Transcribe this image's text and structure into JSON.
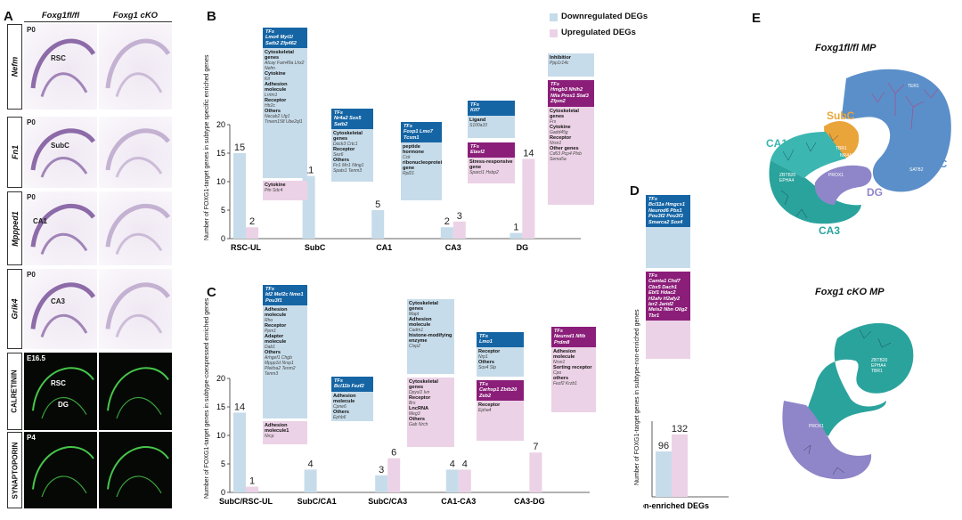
{
  "panel_a": {
    "letter": "A",
    "col_ctrl": "Foxg1fl/fl",
    "col_cko": "Foxg1 cKO",
    "rows": [
      {
        "gene": "Nefm",
        "age": "P0",
        "label": "RSC"
      },
      {
        "gene": "Fn1",
        "age": "P0",
        "label": "SubC"
      },
      {
        "gene": "Mppped1",
        "age": "P0",
        "label": "CA1"
      },
      {
        "gene": "Grik4",
        "age": "P0",
        "label": "CA3"
      },
      {
        "gene": "CALRETININ",
        "age": "E16.5",
        "label": "RSC",
        "label2": "DG"
      },
      {
        "gene": "SYNAPTOPORIN",
        "age": "P4",
        "label": ""
      }
    ]
  },
  "panel_b": {
    "letter": "B",
    "legend_down": "Downregulated DEGs",
    "legend_up": "Upregulated DEGs",
    "color_down": "#c7dcea",
    "color_up": "#ecd2e6",
    "boxes": [
      {
        "id": "rsc_down",
        "hd": "TFs",
        "hd_genes": "Lmo4 Myt1l Satb2 Zfp462",
        "body": [
          [
            "Cytoskeletal genes",
            "Atcay Fam49a Lhx2 Nefm"
          ],
          [
            "Cytokine",
            "Kit"
          ],
          [
            "Adhesion molecule",
            "Lrrtm1"
          ],
          [
            "Receptor",
            "Htr2c"
          ],
          [
            "Others",
            "Necab2 Lfg1 Tmem158 Ube2ql1"
          ]
        ]
      },
      {
        "id": "rsc_up",
        "hd": "",
        "hd_genes": "",
        "body": [
          [
            "Cytokine",
            "Ptn Sdc4"
          ]
        ]
      },
      {
        "id": "subc_down",
        "hd": "TFs",
        "hd_genes": "Nr4a2 Sox5 Satb2",
        "body": [
          [
            "Cytoskeletal genes",
            "Dock3 Crtc1"
          ],
          [
            "Receptor",
            "Sez6"
          ],
          [
            "Others",
            "Fn1 Mn1 Ntng1 Spats1 Tenm3"
          ]
        ]
      },
      {
        "id": "ca1_down",
        "hd": "TFs",
        "hd_genes": "Foxp1 Lmo7 Tcsm1",
        "body": [
          [
            "peptide hormone",
            "Cck"
          ],
          [
            "ribonucleoprotein gene",
            "Rpl21"
          ]
        ]
      },
      {
        "id": "ca3_down",
        "hd": "TFs",
        "hd_genes": "Klf7",
        "body": [
          [
            "Ligand",
            "S100a10"
          ]
        ]
      },
      {
        "id": "ca3_up",
        "hd": "TFs",
        "hd_genes": "Elavl2",
        "body": [
          [
            "Stress-responsive gene",
            "Sparcl1 Hsbp2"
          ]
        ]
      },
      {
        "id": "dg_down",
        "hd": "",
        "hd_genes": "",
        "body": [
          [
            "Inhibitior",
            "Ppp1r14c"
          ]
        ]
      },
      {
        "id": "dg_up",
        "hd": "TFs",
        "hd_genes": "Hmgb3 Nhlh2 Nfia Prox1 Stat3 Zfpm2",
        "body": [
          [
            "Cytoskeletal genes",
            "Frs"
          ],
          [
            "Cytokine",
            "Gadd45g"
          ],
          [
            "Receptor",
            "Nrsn1"
          ],
          [
            "Other genes",
            "Cd63 Pcp4 Plxb Sema5a"
          ]
        ]
      }
    ]
  },
  "panel_c": {
    "letter": "C",
    "boxes": [
      {
        "id": "sr_down",
        "hd": "TFs",
        "hd_genes": "Id2 Mef2c Nmo1 Pou3f1",
        "body": [
          [
            "Adhesion molecule",
            "Rho"
          ],
          [
            "Receptor",
            "Ppm1"
          ],
          [
            "Adapter molecule",
            "Dab1"
          ],
          [
            "Others",
            "Arhgef1 Chgb Mppp1d Nrsp1 Plekha2 Tenm2 Tenm3"
          ]
        ]
      },
      {
        "id": "sr_up",
        "hd": "",
        "hd_genes": "",
        "body": [
          [
            "Adhesion molecule1",
            "Nrcp"
          ]
        ]
      },
      {
        "id": "sca1_down",
        "hd": "TFs",
        "hd_genes": "Bcl11b Fezf2",
        "body": [
          [
            "Adhesion molecule",
            "Cpne6"
          ],
          [
            "Others",
            "Ephb6"
          ]
        ]
      },
      {
        "id": "sca3_down",
        "hd": "",
        "hd_genes": "",
        "body": [
          [
            "Cytoskeletal genes",
            "Mapt"
          ],
          [
            "Adhesion molecule",
            "Cadm1"
          ],
          [
            "histone-modifying enzyme",
            "Cisp2"
          ]
        ]
      },
      {
        "id": "sca3_up",
        "hd": "",
        "hd_genes": "",
        "body": [
          [
            "Cytoskeletal genes",
            "Dpysl1 Ivn"
          ],
          [
            "Receptor",
            "Brs"
          ],
          [
            "LncRNA",
            "Meg3"
          ],
          [
            "Others",
            "Gab Nrch"
          ]
        ]
      },
      {
        "id": "cc_down",
        "hd": "TFs",
        "hd_genes": "Lmo1",
        "body": [
          [
            "Receptor",
            "Nrp1"
          ],
          [
            "Others",
            "Sox4 Slp"
          ]
        ]
      },
      {
        "id": "cc_up",
        "hd": "TFs",
        "hd_genes": "Carhsp1 Zbtb20 Zeb2",
        "body": [
          [
            "Receptor",
            "Epha4"
          ]
        ]
      },
      {
        "id": "cd_up",
        "hd": "TFs",
        "hd_genes": "Neurod1 Nfib Prdm8",
        "body": [
          [
            "Adhesion molecule",
            "Nrsn1"
          ],
          [
            "Sorting receptor",
            "Cpo"
          ],
          [
            "others",
            "Fezf2 Krzb1"
          ]
        ]
      }
    ]
  },
  "panel_d": {
    "letter": "D",
    "box_down": {
      "hd": "TFs",
      "hd_genes": "Bcl11a Hmgcs1 Neurod6 Pbx1 Pou3f2 Pou3f3 Smarca2 Sox4"
    },
    "box_up": {
      "hd": "TFs",
      "hd_genes": "Camta1 Chd7 Cbx5 Dach1 Ebf1 Hdac2 H2afv H2afy2 Ier2 Jarid2 Meis2 Nbn Olig2 Tbr1"
    }
  },
  "panel_e": {
    "letter": "E",
    "title_ctrl": "Foxg1fl/fl MP",
    "title_cko": "Foxg1 cKO MP",
    "labels_ctrl": {
      "subc": "SubC",
      "ca1": "CA1",
      "rsc": "RSC",
      "dg": "DG",
      "ca3": "CA3",
      "ter1": "TER1",
      "tbr1": "TBR1",
      "nr4a2": "NR4A2",
      "satb2": "SATB2",
      "zbtb20": "ZBTB20",
      "epha4": "EPHA4",
      "prox1": "PROX1"
    },
    "labels_cko": {
      "zbtb20": "ZBTB20",
      "epha4": "EPHA4",
      "tbr1": "TBR1",
      "prox1": "PROX1"
    },
    "colors": {
      "rsc": "#5b8fc9",
      "subc": "#e9a43a",
      "ca1": "#3bb6b1",
      "dg": "#8e86c8",
      "ca3": "#2aa39d"
    }
  },
  "chart_data": [
    {
      "type": "bar",
      "panel": "B",
      "ylabel": "Number of FOXG1-target genes in subtype specific enriched genes",
      "ylim": [
        0,
        20
      ],
      "yticks": [
        0,
        5,
        10,
        15,
        20
      ],
      "categories": [
        "RSC-UL",
        "SubC",
        "CA1",
        "CA3",
        "DG"
      ],
      "series": [
        {
          "name": "Downregulated DEGs",
          "color": "#c7dcea",
          "values": [
            15,
            11,
            5,
            2,
            1
          ]
        },
        {
          "name": "Upregulated DEGs",
          "color": "#ecd2e6",
          "values": [
            2,
            0,
            0,
            3,
            14
          ]
        }
      ],
      "data_labels": [
        [
          "15",
          "2"
        ],
        [
          "11",
          ""
        ],
        [
          "5",
          ""
        ],
        [
          "2",
          "3"
        ],
        [
          "1",
          "14"
        ]
      ]
    },
    {
      "type": "bar",
      "panel": "C",
      "ylabel": "Number of FOXG1-target genes in subtype-coexpressed enriched genes",
      "ylim": [
        0,
        20
      ],
      "yticks": [
        0,
        5,
        10,
        15,
        20
      ],
      "categories": [
        "SubC/RSC-UL",
        "SubC/CA1",
        "SubC/CA3",
        "CA1-CA3",
        "CA3-DG"
      ],
      "series": [
        {
          "name": "Downregulated DEGs",
          "color": "#c7dcea",
          "values": [
            14,
            4,
            3,
            4,
            0
          ]
        },
        {
          "name": "Upregulated DEGs",
          "color": "#ecd2e6",
          "values": [
            1,
            0,
            6,
            4,
            7
          ]
        }
      ],
      "data_labels": [
        [
          "14",
          "1"
        ],
        [
          "4",
          ""
        ],
        [
          "3",
          "6"
        ],
        [
          "4",
          "4"
        ],
        [
          "",
          "7"
        ]
      ]
    },
    {
      "type": "bar",
      "panel": "D",
      "ylabel": "Number of FOXG1-target genes in subtype-non-enriched genes",
      "categories": [
        "non-enriched DEGs"
      ],
      "series": [
        {
          "name": "Downregulated DEGs",
          "color": "#c7dcea",
          "values": [
            96
          ]
        },
        {
          "name": "Upregulated DEGs",
          "color": "#ecd2e6",
          "values": [
            132
          ]
        }
      ],
      "data_labels": [
        [
          "96",
          "132"
        ]
      ]
    }
  ]
}
